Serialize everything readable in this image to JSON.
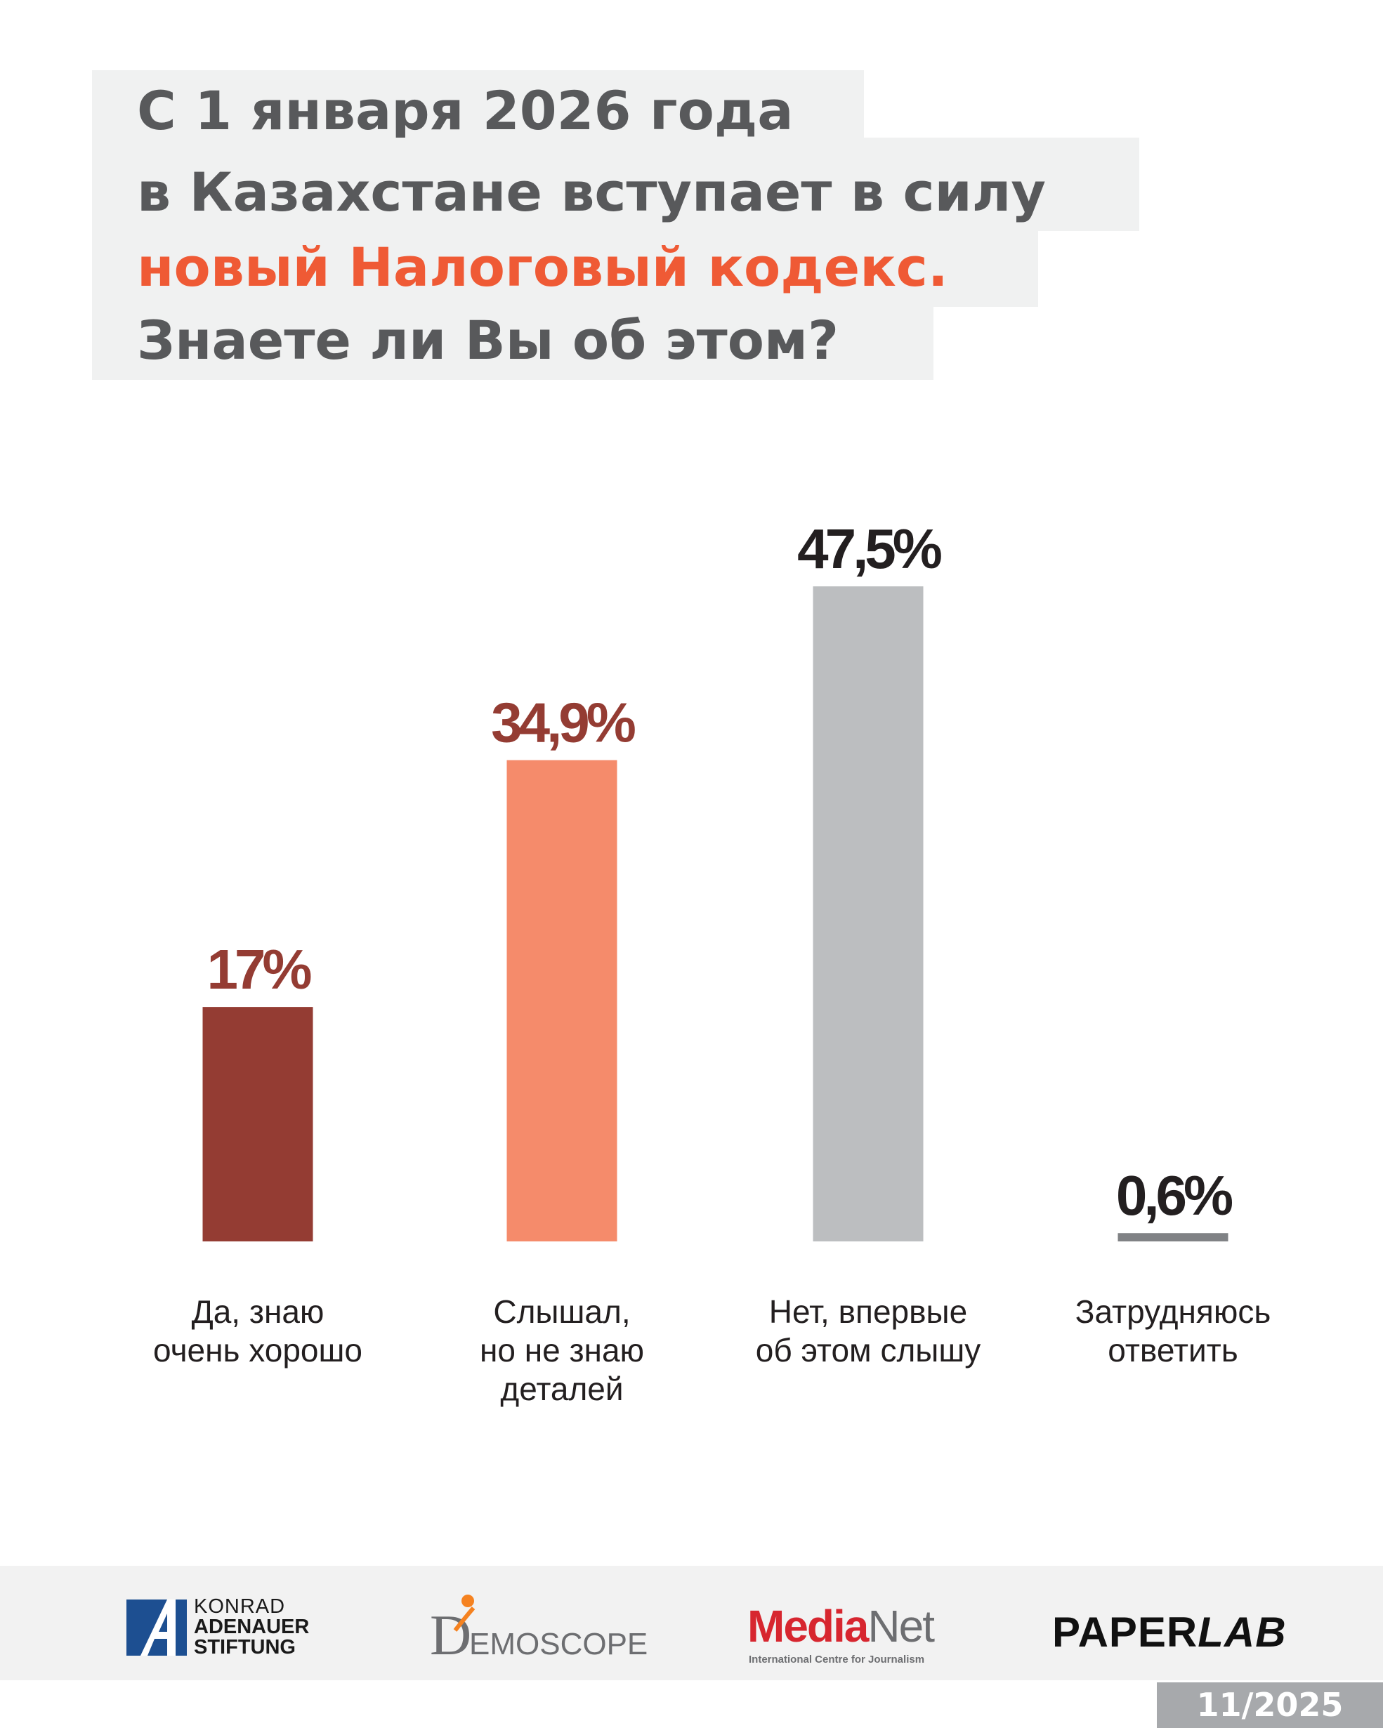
{
  "title": {
    "line1": "С 1 января 2026 года",
    "line2": "в Казахстане вступает в силу",
    "line3": "новый Налоговый кодекс.",
    "line4": "Знаете ли Вы об этом?"
  },
  "colors": {
    "title_text": "#58595b",
    "title_accent": "#ef5a35",
    "title_background": "#f0f1f1"
  },
  "chart_data": {
    "type": "bar",
    "categories": [
      [
        "Да, знаю",
        "очень хорошо"
      ],
      [
        "Слышал,",
        "но не знаю",
        "деталей"
      ],
      [
        "Нет, впервые",
        "об этом слышу"
      ],
      [
        "Затрудняюсь",
        "ответить"
      ]
    ],
    "values": [
      17,
      34.9,
      47.5,
      0.6
    ],
    "value_labels": [
      "17%",
      "34,9%",
      "47,5%",
      "0,6%"
    ],
    "unit": "%",
    "bar_colors": [
      "#943c33",
      "#f58b6b",
      "#bcbec0",
      "#808285"
    ],
    "value_label_colors": [
      "#943c33",
      "#943c33",
      "#231f20",
      "#231f20"
    ],
    "ylim": [
      0,
      50
    ],
    "grid": false,
    "legend": "none"
  },
  "footer": {
    "kas": {
      "line1": "KONRAD",
      "line2": "ADENAUER",
      "line3": "STIFTUNG"
    },
    "demoscope": {
      "text": "EMOSCOPE",
      "initial": "D"
    },
    "medianet": {
      "media": "Media",
      "net": "Net",
      "subtitle": "International Centre for Journalism"
    },
    "paperlab": {
      "paper": "PAPER",
      "lab": "LAB"
    },
    "date": "11/2025"
  }
}
